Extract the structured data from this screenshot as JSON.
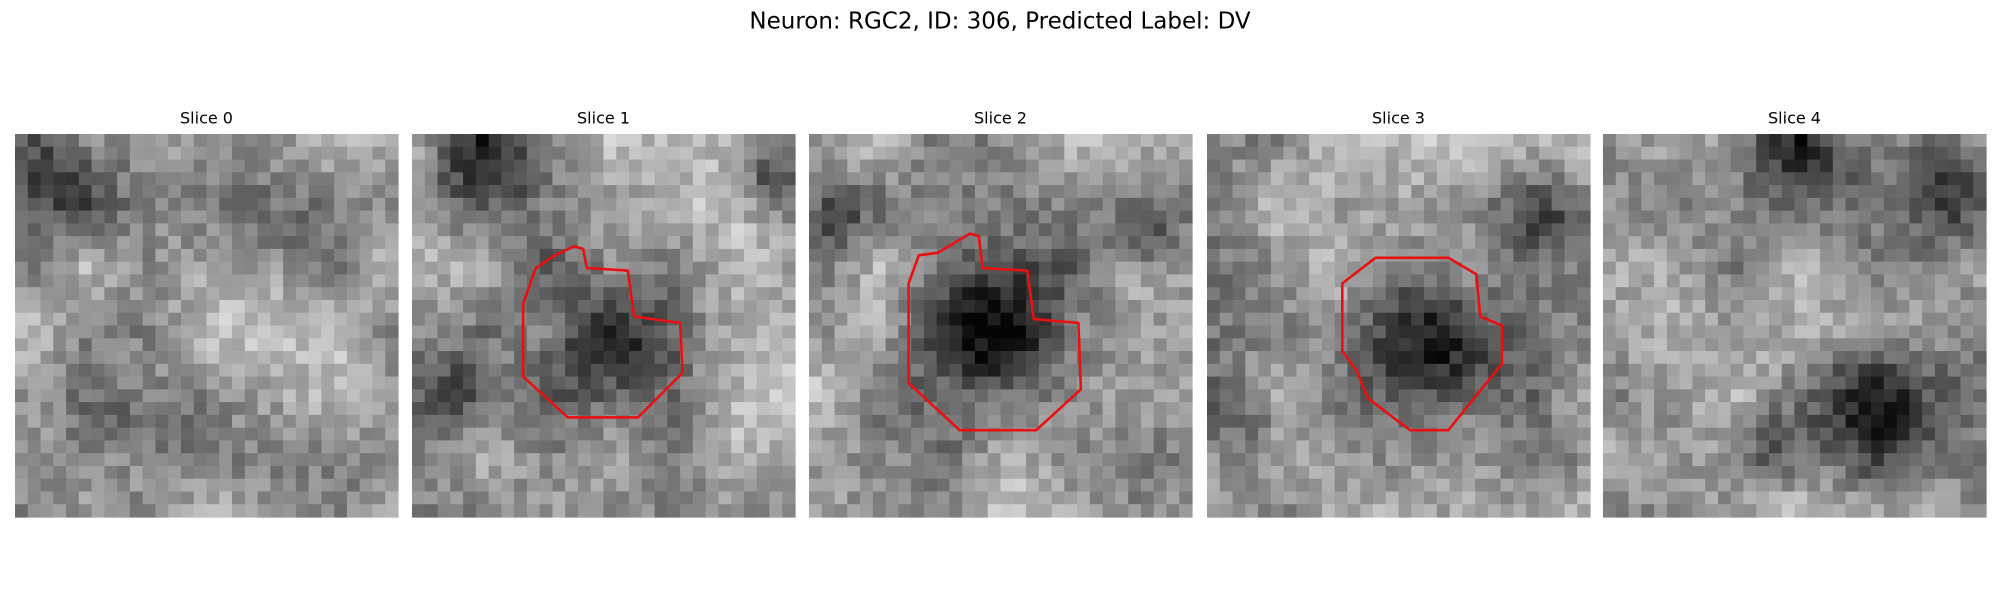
{
  "title": "Neuron: RGC2, ID: 306, Predicted Label: DV",
  "panels": [
    {
      "title": "Slice 0"
    },
    {
      "title": "Slice 1"
    },
    {
      "title": "Slice 2"
    },
    {
      "title": "Slice 3"
    },
    {
      "title": "Slice 4"
    }
  ]
}
